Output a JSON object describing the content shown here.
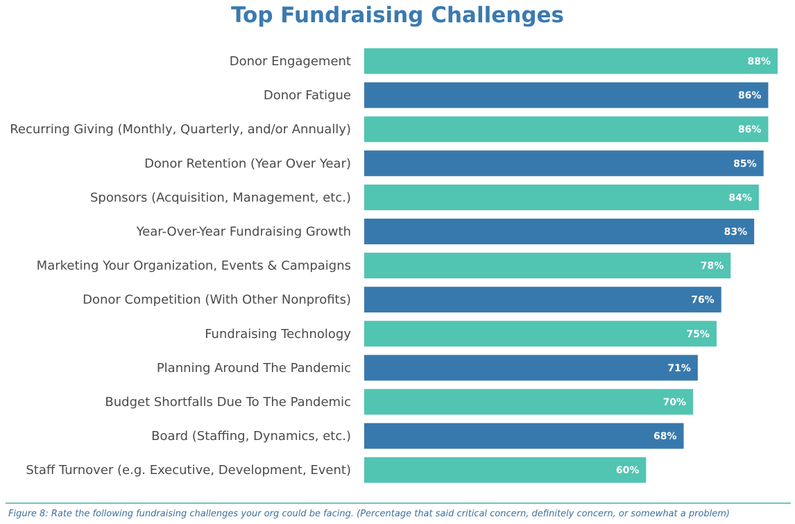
{
  "chart_data": {
    "type": "bar",
    "orientation": "horizontal",
    "title": "Top Fundraising Challenges",
    "categories": [
      "Donor Engagement",
      "Donor Fatigue",
      "Recurring Giving (Monthly, Quarterly, and/or Annually)",
      "Donor Retention (Year Over Year)",
      "Sponsors (Acquisition, Management, etc.)",
      "Year-Over-Year Fundraising Growth",
      "Marketing Your Organization, Events & Campaigns",
      "Donor Competition (With Other Nonprofits)",
      "Fundraising Technology",
      "Planning Around The Pandemic",
      "Budget Shortfalls Due To The Pandemic",
      "Board (Staffing, Dynamics, etc.)",
      "Staff Turnover (e.g. Executive, Development, Event)"
    ],
    "values": [
      88,
      86,
      86,
      85,
      84,
      83,
      78,
      76,
      75,
      71,
      70,
      68,
      60
    ],
    "value_labels": [
      "88%",
      "86%",
      "86%",
      "85%",
      "84%",
      "83%",
      "78%",
      "76%",
      "75%",
      "71%",
      "70%",
      "68%",
      "60%"
    ],
    "xlim": [
      0,
      88
    ],
    "grid": false,
    "legend": "none",
    "bar_colors": [
      "#52c4b2",
      "#3879ad"
    ]
  },
  "caption": "Figure 8: Rate the following fundraising challenges your org could be facing. (Percentage that said critical concern, definitely concern, or somewhat a problem)",
  "colors": {
    "title": "#3a7ab0",
    "caption": "#3d6f9c",
    "rule": "#6fc6bf"
  }
}
